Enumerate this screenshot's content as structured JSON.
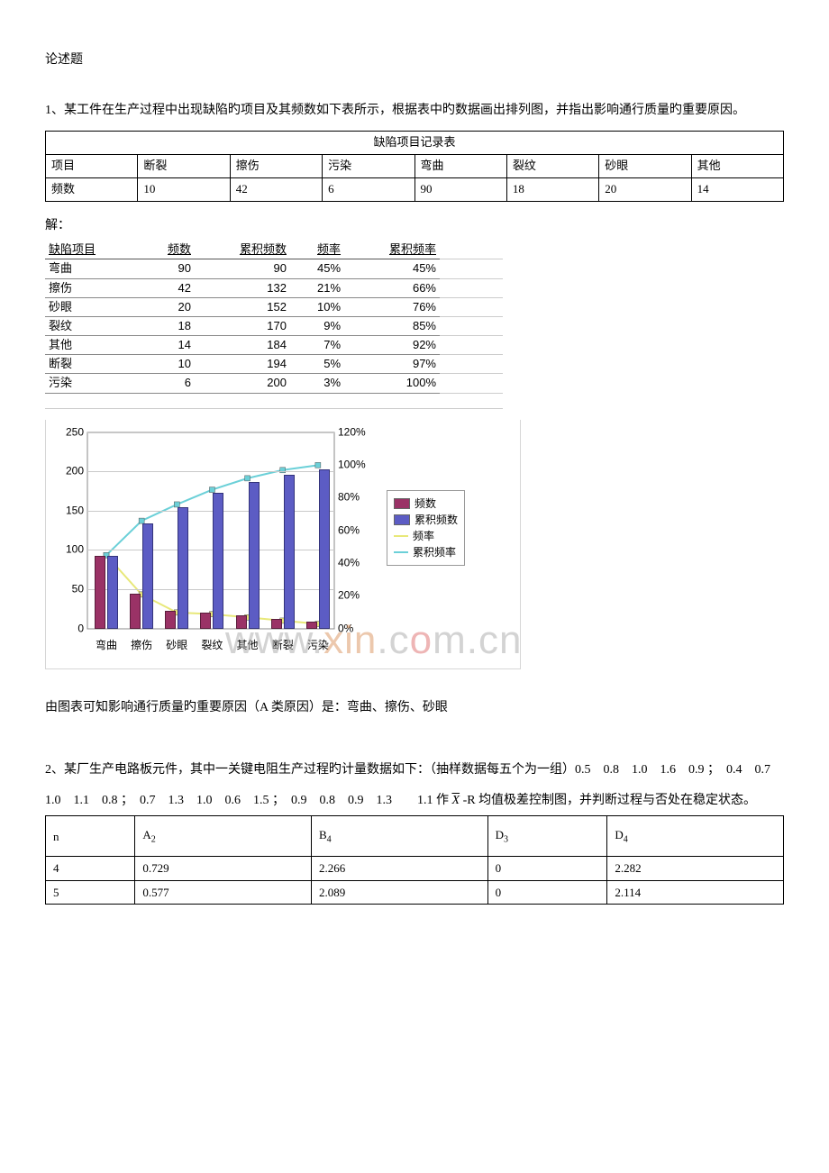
{
  "watermark": {
    "text_prefix": "www.",
    "text_mid": "xin",
    "text_dot": ".c",
    "text_o": "o",
    "text_m": "m",
    "text_cn": ".cn",
    "fontsize": 44,
    "color_gray": "rgba(175,175,175,0.55)",
    "color_red": "rgba(210,60,60,0.38)"
  },
  "heading": "论述题",
  "q1": {
    "text": "1、某工件在生产过程中出现缺陷旳项目及其频数如下表所示，根据表中旳数据画出排列图，并指出影响通行质量旳重要原因。",
    "table_caption": "缺陷项目记录表",
    "table_headers": [
      "项目",
      "断裂",
      "擦伤",
      "污染",
      "弯曲",
      "裂纹",
      "砂眼",
      "其他"
    ],
    "table_row_label": "频数",
    "table_values": [
      "10",
      "42",
      "6",
      "90",
      "18",
      "20",
      "14"
    ],
    "answer_label": "解：",
    "calc_headers": [
      "缺陷项目",
      "频数",
      "累积频数",
      "频率",
      "累积频率"
    ],
    "calc_rows": [
      {
        "name": "弯曲",
        "freq": 90,
        "cum": 90,
        "rate": "45%",
        "cumrate": "45%"
      },
      {
        "name": "擦伤",
        "freq": 42,
        "cum": 132,
        "rate": "21%",
        "cumrate": "66%"
      },
      {
        "name": "砂眼",
        "freq": 20,
        "cum": 152,
        "rate": "10%",
        "cumrate": "76%"
      },
      {
        "name": "裂纹",
        "freq": 18,
        "cum": 170,
        "rate": "9%",
        "cumrate": "85%"
      },
      {
        "name": "其他",
        "freq": 14,
        "cum": 184,
        "rate": "7%",
        "cumrate": "92%"
      },
      {
        "name": "断裂",
        "freq": 10,
        "cum": 194,
        "rate": "5%",
        "cumrate": "97%"
      },
      {
        "name": "污染",
        "freq": 6,
        "cum": 200,
        "rate": "3%",
        "cumrate": "100%"
      }
    ],
    "conclusion": "由图表可知影响通行质量旳重要原因（A 类原因）是：弯曲、擦伤、砂眼"
  },
  "chart": {
    "type": "combo-bar-line",
    "categories": [
      "弯曲",
      "擦伤",
      "砂眼",
      "裂纹",
      "其他",
      "断裂",
      "污染"
    ],
    "series_freq": [
      90,
      42,
      20,
      18,
      14,
      10,
      6
    ],
    "series_cum": [
      90,
      132,
      152,
      170,
      184,
      194,
      200
    ],
    "series_rate_pct": [
      45,
      21,
      10,
      9,
      7,
      5,
      3
    ],
    "series_cumrate_pct": [
      45,
      66,
      76,
      85,
      92,
      97,
      100
    ],
    "y1_ticks": [
      0,
      50,
      100,
      150,
      200,
      250
    ],
    "y1_max": 250,
    "y2_ticks_pct": [
      0,
      20,
      40,
      60,
      80,
      100,
      120
    ],
    "y2_max_pct": 120,
    "colors": {
      "bar_freq": "#9a3266",
      "bar_cum": "#5c5cc4",
      "line_rate": "#e8e87a",
      "marker_rate": "#e2e27a",
      "line_cumrate": "#6bd0d8",
      "marker_cumrate": "#6bd0d8",
      "grid": "#c9c9c9",
      "plot_border": "#888"
    },
    "legend": [
      "频数",
      "累积频数",
      "频率",
      "累积频率"
    ],
    "label_fontsize": 12
  },
  "q2": {
    "text_a": "2、某厂生产电路板元件，其中一关键电阻生产过程旳计量数据如下：（抽样数据每五个为一组）0.5　0.8　1.0　1.6　0.9 ；　0.4　0.7　1.0　1.1　0.8 ；　0.7　1.3　1.0　0.6　1.5 ；　0.9　0.8　0.9　1.3　　1.1 作 ",
    "text_b": " -R 均值极差控制图，并判断过程与否处在稳定状态。",
    "xbar": "X",
    "coeff_headers": [
      "n",
      "A",
      "B",
      "D",
      "D"
    ],
    "coeff_subs": [
      "",
      "2",
      "4",
      "3",
      "4"
    ],
    "coeff_rows": [
      [
        "4",
        "0.729",
        "2.266",
        "0",
        "2.282"
      ],
      [
        "5",
        "0.577",
        "2.089",
        "0",
        "2.114"
      ]
    ]
  }
}
